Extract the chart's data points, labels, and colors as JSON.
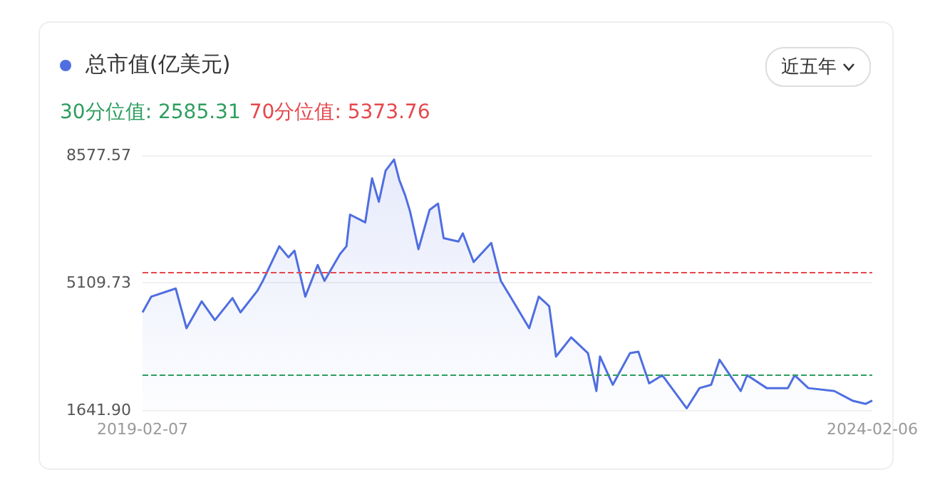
{
  "chart_data": {
    "type": "area",
    "annotations": [
      "近五年"
    ],
    "legend": "top left",
    "grid": "y",
    "marker": "none",
    "x": [
      "2019-02-07",
      "2019-03-01",
      "2019-05-01",
      "2019-05-28",
      "2019-07-05",
      "2019-08-07",
      "2019-09-20",
      "2019-10-10",
      "2019-11-22",
      "2019-12-05",
      "2020-01-15",
      "2020-02-07",
      "2020-02-22",
      "2020-03-20",
      "2020-04-20",
      "2020-05-07",
      "2020-06-15",
      "2020-07-01",
      "2020-07-10",
      "2020-08-17",
      "2020-09-03",
      "2020-09-20",
      "2020-10-07",
      "2020-10-28",
      "2020-11-10",
      "2020-11-25",
      "2020-12-07",
      "2020-12-28",
      "2021-01-25",
      "2021-02-15",
      "2021-03-01",
      "2021-04-07",
      "2021-04-18",
      "2021-05-15",
      "2021-06-28",
      "2021-07-22",
      "2021-08-22",
      "2021-10-01",
      "2021-10-25",
      "2021-11-20",
      "2021-12-07",
      "2022-01-14",
      "2022-02-25",
      "2022-03-18",
      "2022-03-27",
      "2022-04-28",
      "2022-06-10",
      "2022-07-01",
      "2022-07-28",
      "2022-08-30",
      "2022-10-30",
      "2022-12-01",
      "2022-12-30",
      "2023-01-20",
      "2023-03-14",
      "2023-03-30",
      "2023-05-18",
      "2023-07-10",
      "2023-07-27",
      "2023-08-30",
      "2023-11-03",
      "2023-12-18",
      "2024-01-20",
      "2024-02-06"
    ],
    "series": [
      {
        "name": "总市值(亿美元)",
        "color": "#4f6ee0",
        "values": [
          4300,
          4730,
          4950,
          3870,
          4600,
          4090,
          4690,
          4300,
          4900,
          5160,
          6100,
          5800,
          5980,
          4730,
          5590,
          5160,
          5890,
          6100,
          6960,
          6750,
          7950,
          7310,
          8160,
          8460,
          7910,
          7480,
          7050,
          6020,
          7090,
          7260,
          6320,
          6230,
          6450,
          5670,
          6190,
          5160,
          4600,
          3870,
          4730,
          4470,
          3100,
          3620,
          3190,
          2160,
          3100,
          2330,
          3190,
          3230,
          2370,
          2590,
          1690,
          2240,
          2330,
          3010,
          2160,
          2590,
          2240,
          2240,
          2590,
          2240,
          2160,
          1900,
          1810,
          1900
        ]
      }
    ],
    "ylim": [
      1641.9,
      8577.57
    ],
    "yticks": [
      {
        "value": 1641.9,
        "label": "1641.90"
      },
      {
        "value": 5109.73,
        "label": "5109.73"
      },
      {
        "value": 8577.57,
        "label": "8577.57"
      }
    ],
    "xlim": [
      "2019-02-07",
      "2024-02-06"
    ],
    "xticks": [
      "2019-02-07",
      "2024-02-06"
    ],
    "ref_lines": [
      {
        "axis": "y",
        "value": 2585.31,
        "label": "30分位值: 2585.31",
        "color": "#2e9e5f",
        "line_style": "dashed"
      },
      {
        "axis": "y",
        "value": 5373.76,
        "label": "70分位值: 5373.76",
        "color": "#e5484d",
        "line_style": "dashed"
      }
    ]
  }
}
